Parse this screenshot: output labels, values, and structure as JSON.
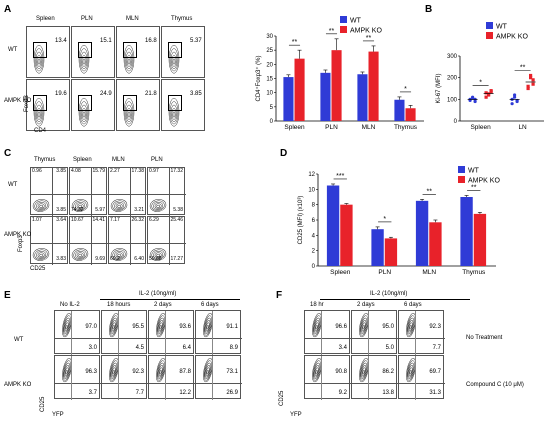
{
  "panels": {
    "A": {
      "label": "A",
      "cols": [
        "Spleen",
        "PLN",
        "MLN",
        "Thymus"
      ],
      "rows": [
        "WT",
        "AMPK KO"
      ],
      "xaxis": "CD4",
      "yaxis": "Foxp3",
      "values": [
        [
          "13.4",
          "15.1",
          "16.8",
          "5.37"
        ],
        [
          "19.6",
          "24.9",
          "21.8",
          "3.85"
        ]
      ]
    },
    "B": {
      "label": "B"
    },
    "C": {
      "label": "C",
      "cols": [
        "Thymus",
        "Spleen",
        "MLN",
        "PLN"
      ],
      "rows": [
        "WT",
        "AMPK KO"
      ],
      "xaxis": "CD25",
      "yaxis": "Foxp3",
      "quadrants": [
        [
          [
            "0.96",
            "3.85",
            "",
            "3.85"
          ],
          [
            "4.08",
            "15.79",
            "74.32",
            "5.97"
          ],
          [
            "2.27",
            "17.38",
            "",
            "3.21"
          ],
          [
            "0.97",
            "17.32",
            "",
            "5.38"
          ]
        ],
        [
          [
            "1.07",
            "3.64",
            "",
            "3.83"
          ],
          [
            "10.67",
            "14.41",
            "",
            "9.69"
          ],
          [
            "7.17",
            "26.32",
            "60.2",
            "6.40"
          ],
          [
            "6.29",
            "25.46",
            "50.88",
            "17.27"
          ]
        ]
      ]
    },
    "D": {
      "label": "D"
    },
    "E": {
      "label": "E",
      "header": "IL-2 (10ng/ml)",
      "cols": [
        "No IL-2",
        "18 hours",
        "2 days",
        "6 days"
      ],
      "rows": [
        "WT",
        "AMPK KO"
      ],
      "xaxis": "YFP",
      "yaxis": "CD25",
      "top": [
        [
          "97.0",
          "95.5",
          "93.6",
          "91.1"
        ],
        [
          "96.3",
          "92.3",
          "87.8",
          "73.1"
        ]
      ],
      "bottom": [
        [
          "3.0",
          "4.5",
          "6.4",
          "8.9"
        ],
        [
          "3.7",
          "7.7",
          "12.2",
          "26.9"
        ]
      ]
    },
    "F": {
      "label": "F",
      "header": "IL-2 (10ng/ml)",
      "cols": [
        "18 hr",
        "2 days",
        "6 days"
      ],
      "rows": [
        "No Treatment",
        "Compound C (10 μM)"
      ],
      "xaxis": "YFP",
      "yaxis": "CD25",
      "top": [
        [
          "96.6",
          "95.0",
          "92.3"
        ],
        [
          "90.8",
          "86.2",
          "69.7"
        ]
      ],
      "bottom": [
        [
          "3.4",
          "5.0",
          "7.7"
        ],
        [
          "9.2",
          "13.8",
          "31.3"
        ]
      ]
    }
  },
  "chart_data": [
    {
      "id": "A-bar",
      "type": "bar",
      "ylabel": "CD4⁺Foxp3⁺ (%)",
      "categories": [
        "Spleen",
        "PLN",
        "MLN",
        "Thymus"
      ],
      "ylim": [
        0,
        30
      ],
      "yticks": [
        "0",
        "5",
        "10",
        "15",
        "20",
        "25",
        "30"
      ],
      "series": [
        {
          "name": "WT",
          "color": "#2f3bd6",
          "values": [
            15.5,
            17,
            16.5,
            7.5
          ],
          "err": [
            0.8,
            1,
            0.8,
            1
          ]
        },
        {
          "name": "AMPK KO",
          "color": "#e8222a",
          "values": [
            22,
            25,
            24.5,
            4.5
          ],
          "err": [
            3,
            4,
            2,
            1
          ]
        }
      ],
      "sig": [
        "**",
        "**",
        "**",
        "*"
      ]
    },
    {
      "id": "B-dot",
      "type": "scatter",
      "ylabel": "Ki-67 (MFI)",
      "categories": [
        "Spleen",
        "LN"
      ],
      "ylim": [
        0,
        300
      ],
      "yticks": [
        "0",
        "100",
        "200",
        "300"
      ],
      "series": [
        {
          "name": "WT",
          "color": "#2f3bd6",
          "points": [
            [
              100,
              110,
              90,
              95,
              105,
              100
            ],
            [
              100,
              120,
              90,
              80,
              110,
              95
            ]
          ]
        },
        {
          "name": "AMPK KO",
          "color": "#e8222a",
          "points": [
            [
              130,
              120,
              140,
              110,
              125,
              135
            ],
            [
              150,
              200,
              170,
              160,
              210,
              190
            ]
          ]
        }
      ],
      "sig": [
        "*",
        "**"
      ]
    },
    {
      "id": "D-bar",
      "type": "bar",
      "ylabel": "CD25 (MFI) (x10³)",
      "categories": [
        "Spleen",
        "PLN",
        "MLN",
        "Thymus"
      ],
      "ylim": [
        0,
        12
      ],
      "yticks": [
        "0",
        "2",
        "4",
        "6",
        "8",
        "10",
        "12"
      ],
      "series": [
        {
          "name": "WT",
          "color": "#2f3bd6",
          "values": [
            10.5,
            4.8,
            8.5,
            9.0
          ],
          "err": [
            0.2,
            0.3,
            0.2,
            0.2
          ]
        },
        {
          "name": "AMPK KO",
          "color": "#e8222a",
          "values": [
            8.0,
            3.6,
            5.7,
            6.8
          ],
          "err": [
            0.15,
            0.15,
            0.3,
            0.2
          ]
        }
      ],
      "sig": [
        "***",
        "*",
        "**",
        "**"
      ]
    }
  ]
}
